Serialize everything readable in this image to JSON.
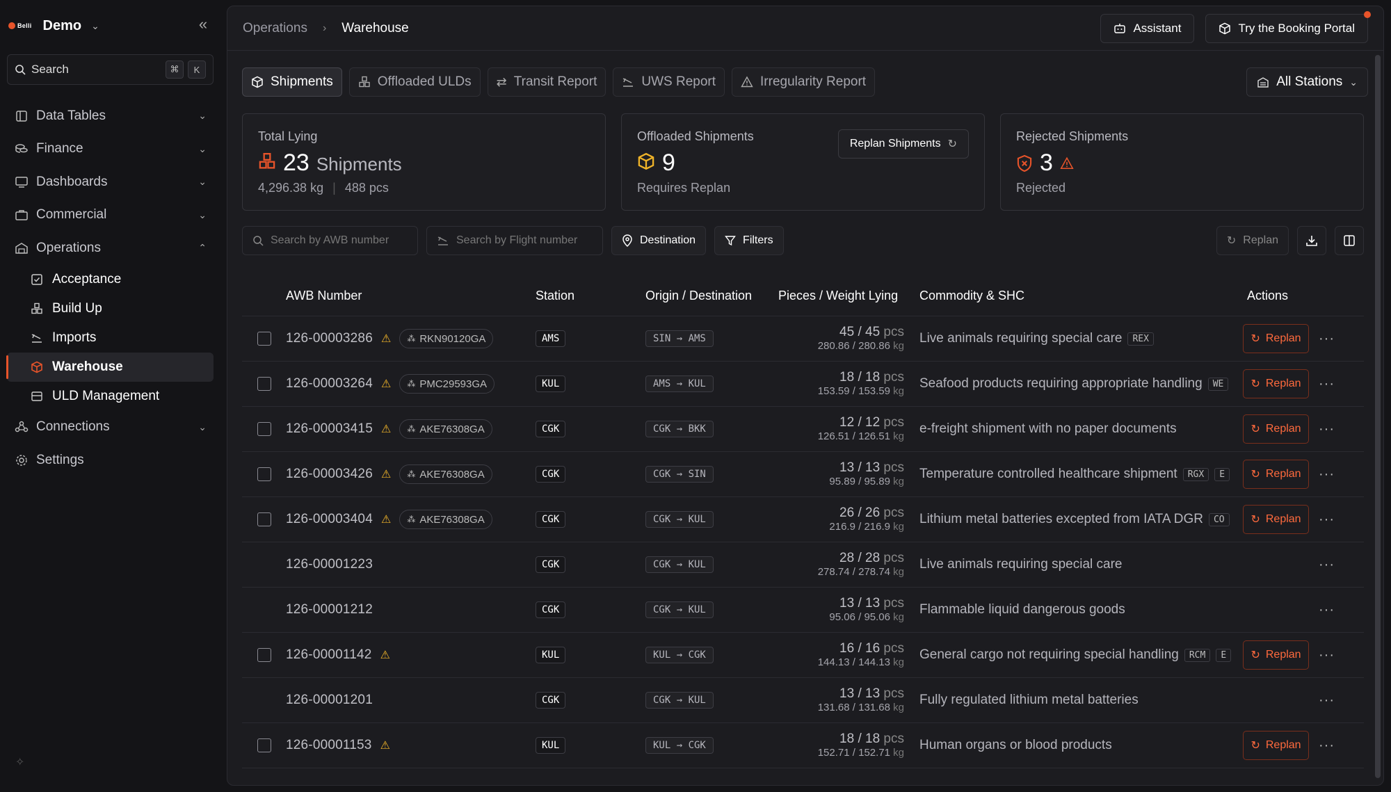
{
  "brand": {
    "logo_text": "Belli",
    "name": "Demo"
  },
  "search": {
    "label": "Search",
    "kbd1": "⌘",
    "kbd2": "K"
  },
  "nav": {
    "data_tables": "Data Tables",
    "finance": "Finance",
    "dashboards": "Dashboards",
    "commercial": "Commercial",
    "operations": "Operations",
    "sub": {
      "acceptance": "Acceptance",
      "build_up": "Build Up",
      "imports": "Imports",
      "warehouse": "Warehouse",
      "uld_management": "ULD Management"
    },
    "connections": "Connections",
    "settings": "Settings"
  },
  "breadcrumb": {
    "parent": "Operations",
    "current": "Warehouse"
  },
  "top_actions": {
    "assistant": "Assistant",
    "booking_portal": "Try the Booking Portal"
  },
  "tabs": {
    "shipments": "Shipments",
    "offloaded": "Offloaded ULDs",
    "transit": "Transit Report",
    "uws": "UWS Report",
    "irregularity": "Irregularity Report"
  },
  "stations_select": "All Stations",
  "cards": {
    "total": {
      "title": "Total Lying",
      "value": "23",
      "unit": "Shipments",
      "weight": "4,296.38",
      "weight_unit": "kg",
      "pieces": "488",
      "pieces_unit": "pcs"
    },
    "offloaded": {
      "title": "Offloaded Shipments",
      "value": "9",
      "sub": "Requires Replan",
      "button": "Replan Shipments"
    },
    "rejected": {
      "title": "Rejected Shipments",
      "value": "3",
      "sub": "Rejected"
    }
  },
  "filters": {
    "awb_placeholder": "Search by AWB number",
    "flight_placeholder": "Search by Flight number",
    "destination": "Destination",
    "filters": "Filters",
    "replan": "Replan"
  },
  "table": {
    "headers": {
      "awb": "AWB Number",
      "station": "Station",
      "od": "Origin / Destination",
      "pw": "Pieces / Weight Lying",
      "commodity": "Commodity & SHC",
      "actions": "Actions"
    },
    "pcs_unit": "pcs",
    "kg_unit": "kg",
    "replan_label": "Replan",
    "rows": [
      {
        "awb": "126-00003286",
        "warn": true,
        "uld": "RKN90120GA",
        "station": "AMS",
        "od": "SIN → AMS",
        "pieces": "45 / 45",
        "weight": "280.86 / 280.86",
        "commodity": "Live animals requiring special care",
        "shc": [
          "REX"
        ],
        "replan": true
      },
      {
        "awb": "126-00003264",
        "warn": true,
        "uld": "PMC29593GA",
        "station": "KUL",
        "od": "AMS → KUL",
        "pieces": "18 / 18",
        "weight": "153.59 / 153.59",
        "commodity": "Seafood products requiring appropriate handling",
        "shc": [
          "WE"
        ],
        "replan": true
      },
      {
        "awb": "126-00003415",
        "warn": true,
        "uld": "AKE76308GA",
        "station": "CGK",
        "od": "CGK → BKK",
        "pieces": "12 / 12",
        "weight": "126.51 / 126.51",
        "commodity": "e-freight shipment with no paper documents",
        "shc": [],
        "replan": true
      },
      {
        "awb": "126-00003426",
        "warn": true,
        "uld": "AKE76308GA",
        "station": "CGK",
        "od": "CGK → SIN",
        "pieces": "13 / 13",
        "weight": "95.89 / 95.89",
        "commodity": "Temperature controlled healthcare shipment",
        "shc": [
          "RGX",
          "E"
        ],
        "replan": true
      },
      {
        "awb": "126-00003404",
        "warn": true,
        "uld": "AKE76308GA",
        "station": "CGK",
        "od": "CGK → KUL",
        "pieces": "26 / 26",
        "weight": "216.9 / 216.9",
        "commodity": "Lithium metal batteries excepted from IATA DGR",
        "shc": [
          "CO"
        ],
        "replan": true
      },
      {
        "awb": "126-00001223",
        "warn": false,
        "uld": "",
        "station": "CGK",
        "od": "CGK → KUL",
        "pieces": "28 / 28",
        "weight": "278.74 / 278.74",
        "commodity": "Live animals requiring special care",
        "shc": [],
        "replan": false
      },
      {
        "awb": "126-00001212",
        "warn": false,
        "uld": "",
        "station": "CGK",
        "od": "CGK → KUL",
        "pieces": "13 / 13",
        "weight": "95.06 / 95.06",
        "commodity": "Flammable liquid dangerous goods",
        "shc": [],
        "replan": false
      },
      {
        "awb": "126-00001142",
        "warn": true,
        "uld": "",
        "station": "KUL",
        "od": "KUL → CGK",
        "pieces": "16 / 16",
        "weight": "144.13 / 144.13",
        "commodity": "General cargo not requiring special handling",
        "shc": [
          "RCM",
          "E"
        ],
        "replan": true
      },
      {
        "awb": "126-00001201",
        "warn": false,
        "uld": "",
        "station": "CGK",
        "od": "CGK → KUL",
        "pieces": "13 / 13",
        "weight": "131.68 / 131.68",
        "commodity": "Fully regulated lithium metal batteries",
        "shc": [],
        "replan": false
      },
      {
        "awb": "126-00001153",
        "warn": true,
        "uld": "",
        "station": "KUL",
        "od": "KUL → CGK",
        "pieces": "18 / 18",
        "weight": "152.71 / 152.71",
        "commodity": "Human organs or blood products",
        "shc": [],
        "replan": true
      }
    ]
  },
  "colors": {
    "accent": "#e8542a",
    "warning": "#f0b429",
    "replan": "#ff6a3d"
  }
}
